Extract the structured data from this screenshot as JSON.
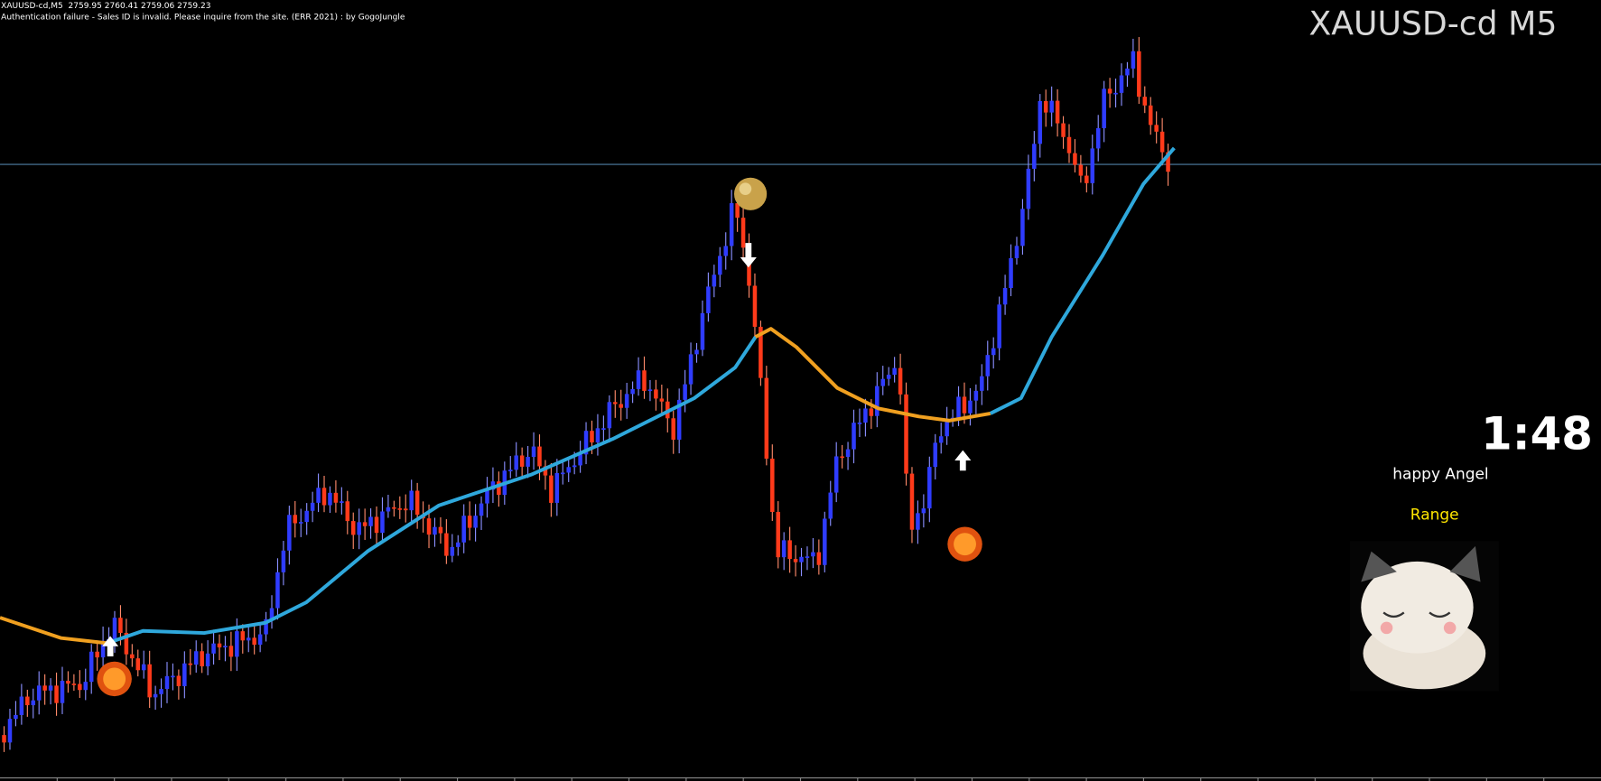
{
  "header": {
    "quote": "XAUUSD-cd,M5  2759.95 2760.41 2759.06 2759.23",
    "message": "Authentication failure - Sales ID is invalid. Please inquire from the site. (ERR 2021) : by GogoJungle"
  },
  "symbol": "XAUUSD-cd M5",
  "panel": {
    "timer": "1:48",
    "name": "happy Angel",
    "status": "Range"
  }
}
